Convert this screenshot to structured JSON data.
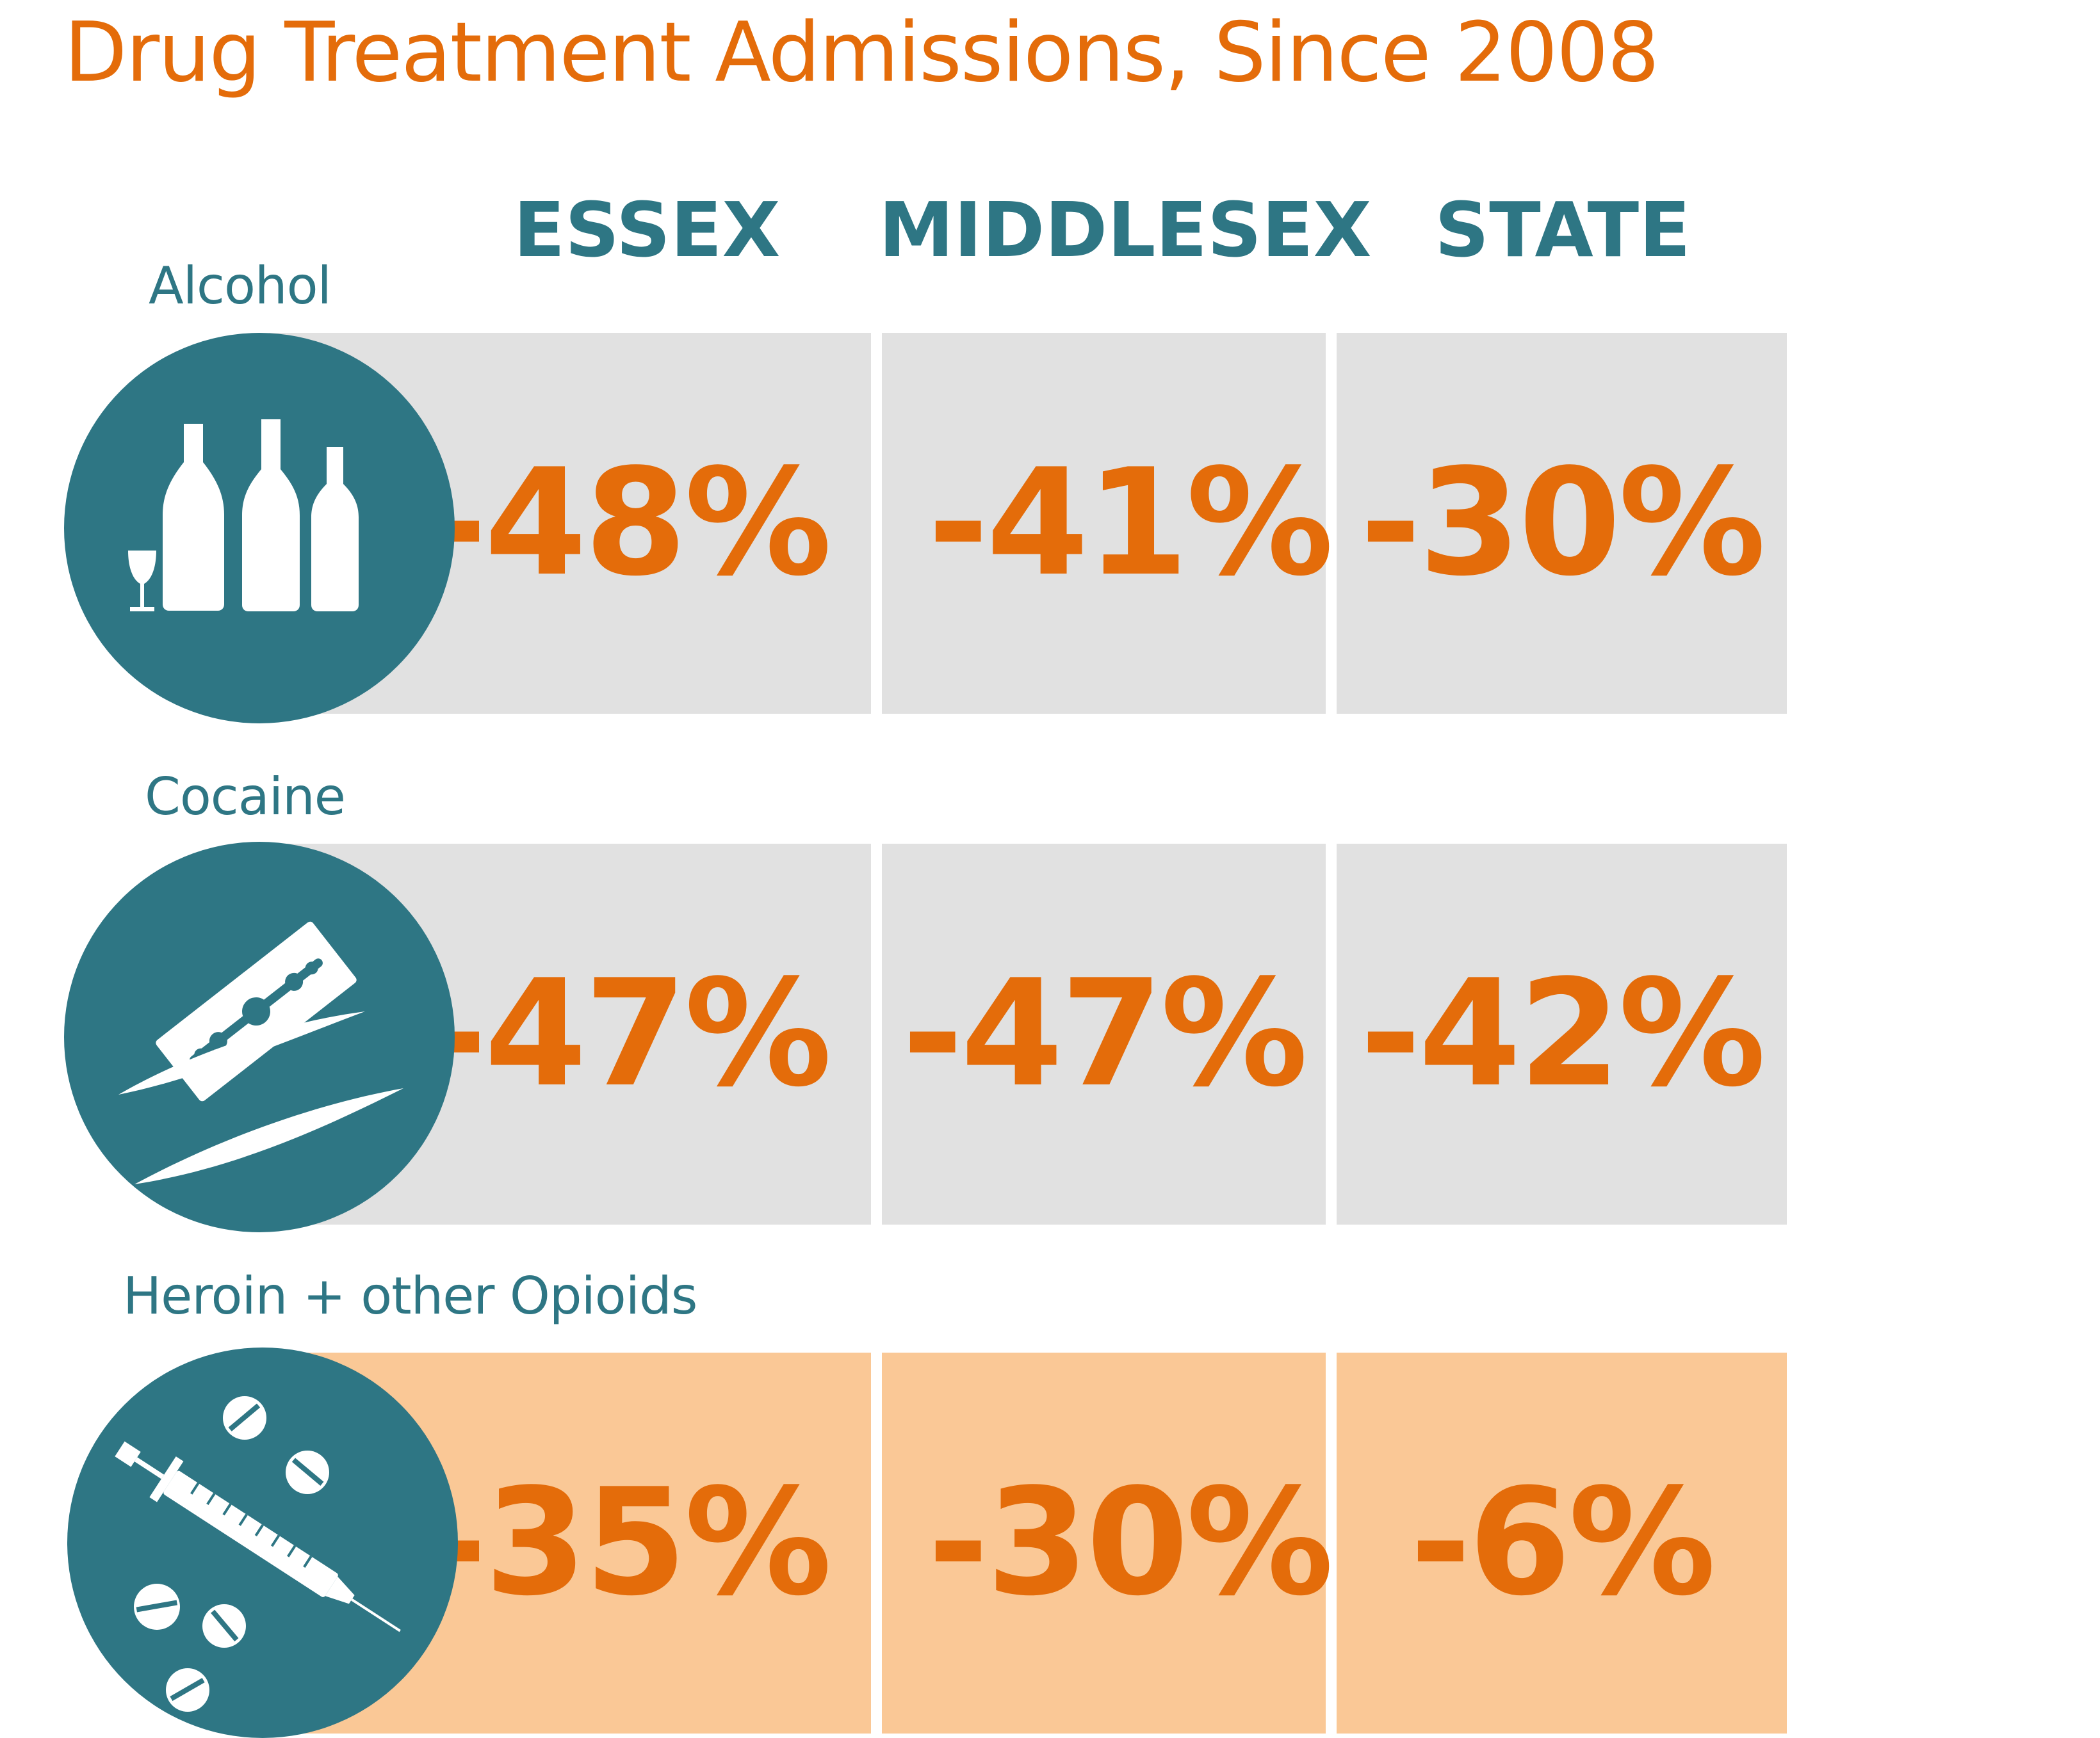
{
  "title": "Drug Treatment Admissions, Since 2008",
  "colors": {
    "accent": "#E46C0A",
    "teal": "#2E7684",
    "cell_gray": "#E1E1E1",
    "cell_peach": "#FAC896"
  },
  "chart_data": {
    "type": "table",
    "title": "Drug Treatment Admissions, Since 2008",
    "columns": [
      "ESSEX",
      "MIDDLESEX",
      "STATE"
    ],
    "rows": [
      {
        "label": "Alcohol",
        "icon": "alcohol-bottles-icon",
        "values": [
          "-48%",
          "-41%",
          "-30%"
        ],
        "numeric": [
          -48,
          -41,
          -30
        ],
        "highlight": false
      },
      {
        "label": "Cocaine",
        "icon": "razor-blade-icon",
        "values": [
          "-47%",
          "-47%",
          "-42%"
        ],
        "numeric": [
          -47,
          -47,
          -42
        ],
        "highlight": false
      },
      {
        "label": "Heroin + other Opioids",
        "icon": "syringe-pills-icon",
        "values": [
          "-35%",
          "-30%",
          "-6%"
        ],
        "numeric": [
          -35,
          -30,
          -6
        ],
        "highlight": true
      }
    ]
  }
}
